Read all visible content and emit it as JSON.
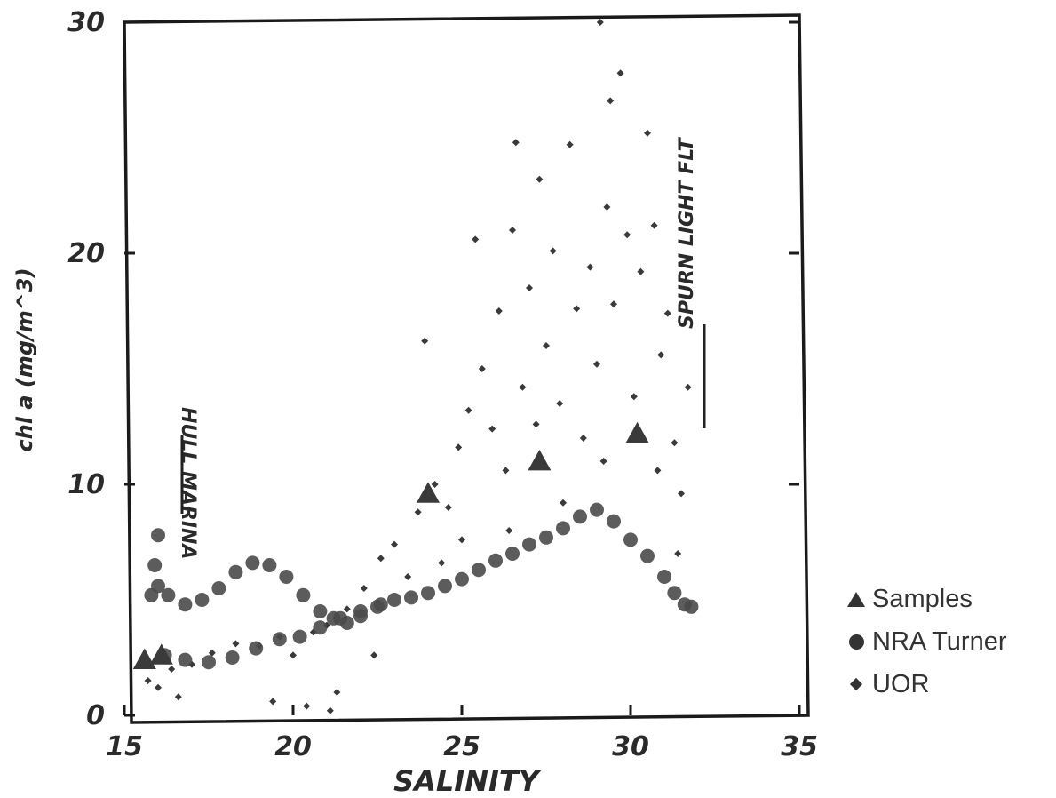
{
  "chart_data": {
    "type": "scatter",
    "title": "",
    "xlabel": "SALINITY",
    "ylabel": "chl a (mg/m^3)",
    "xlim": [
      15,
      35
    ],
    "ylim": [
      0,
      30
    ],
    "xticks": [
      "15",
      "20",
      "25",
      "30",
      "35"
    ],
    "yticks": [
      "0",
      "10",
      "20",
      "30"
    ],
    "grid": false,
    "legend_position": "right",
    "annotations": [
      "HULL MARINA",
      "SPURN LIGHT FLT"
    ],
    "series": [
      {
        "name": "Samples",
        "marker": "triangle",
        "points": [
          [
            15.6,
            2.4
          ],
          [
            16.1,
            2.6
          ],
          [
            24.0,
            9.6
          ],
          [
            27.3,
            11.0
          ],
          [
            30.2,
            12.2
          ]
        ]
      },
      {
        "name": "NRA Turner",
        "marker": "circle",
        "points": [
          [
            15.8,
            5.2
          ],
          [
            15.9,
            6.5
          ],
          [
            16.0,
            7.8
          ],
          [
            16.0,
            5.6
          ],
          [
            16.3,
            5.2
          ],
          [
            16.8,
            4.8
          ],
          [
            17.3,
            5.0
          ],
          [
            17.8,
            5.5
          ],
          [
            18.3,
            6.2
          ],
          [
            18.8,
            6.6
          ],
          [
            19.3,
            6.5
          ],
          [
            19.8,
            6.0
          ],
          [
            20.3,
            5.2
          ],
          [
            20.8,
            4.5
          ],
          [
            21.2,
            4.2
          ],
          [
            21.6,
            4.0
          ],
          [
            22.0,
            4.3
          ],
          [
            22.5,
            4.7
          ],
          [
            23.0,
            5.0
          ],
          [
            23.5,
            5.1
          ],
          [
            24.0,
            5.3
          ],
          [
            24.5,
            5.6
          ],
          [
            25.0,
            5.9
          ],
          [
            25.5,
            6.3
          ],
          [
            26.0,
            6.7
          ],
          [
            26.5,
            7.0
          ],
          [
            27.0,
            7.4
          ],
          [
            27.5,
            7.7
          ],
          [
            28.0,
            8.1
          ],
          [
            28.5,
            8.6
          ],
          [
            29.0,
            8.9
          ],
          [
            29.5,
            8.4
          ],
          [
            30.0,
            7.6
          ],
          [
            30.5,
            6.9
          ],
          [
            31.0,
            6.0
          ],
          [
            31.3,
            5.3
          ],
          [
            31.6,
            4.8
          ],
          [
            31.8,
            4.7
          ],
          [
            16.2,
            2.6
          ],
          [
            16.8,
            2.4
          ],
          [
            17.5,
            2.3
          ],
          [
            18.2,
            2.5
          ],
          [
            18.9,
            2.9
          ],
          [
            19.6,
            3.3
          ],
          [
            20.2,
            3.4
          ],
          [
            20.8,
            3.8
          ],
          [
            21.4,
            4.2
          ],
          [
            22.0,
            4.5
          ],
          [
            22.6,
            4.8
          ]
        ]
      },
      {
        "name": "UOR",
        "marker": "diamond",
        "points": [
          [
            15.7,
            1.5
          ],
          [
            16.0,
            1.2
          ],
          [
            16.4,
            2.0
          ],
          [
            17.0,
            2.2
          ],
          [
            17.6,
            2.7
          ],
          [
            18.3,
            3.1
          ],
          [
            19.0,
            3.0
          ],
          [
            19.6,
            3.4
          ],
          [
            20.0,
            2.6
          ],
          [
            20.6,
            3.6
          ],
          [
            21.0,
            3.9
          ],
          [
            21.3,
            1.0
          ],
          [
            21.6,
            4.6
          ],
          [
            22.1,
            5.5
          ],
          [
            22.6,
            6.8
          ],
          [
            23.0,
            7.4
          ],
          [
            23.4,
            6.0
          ],
          [
            23.7,
            8.8
          ],
          [
            23.9,
            16.2
          ],
          [
            24.2,
            10.0
          ],
          [
            24.6,
            9.0
          ],
          [
            24.9,
            11.6
          ],
          [
            25.2,
            13.2
          ],
          [
            25.4,
            20.6
          ],
          [
            25.6,
            15.0
          ],
          [
            25.9,
            12.4
          ],
          [
            26.1,
            17.5
          ],
          [
            26.3,
            10.6
          ],
          [
            26.5,
            21.0
          ],
          [
            26.6,
            24.8
          ],
          [
            26.8,
            14.2
          ],
          [
            27.0,
            18.5
          ],
          [
            27.2,
            12.6
          ],
          [
            27.3,
            23.2
          ],
          [
            27.5,
            16.0
          ],
          [
            27.7,
            20.1
          ],
          [
            27.9,
            13.5
          ],
          [
            28.2,
            24.7
          ],
          [
            28.4,
            17.6
          ],
          [
            28.6,
            12.0
          ],
          [
            28.8,
            19.4
          ],
          [
            29.0,
            15.2
          ],
          [
            29.1,
            30.0
          ],
          [
            29.3,
            22.0
          ],
          [
            29.4,
            26.6
          ],
          [
            29.5,
            17.8
          ],
          [
            29.7,
            27.8
          ],
          [
            29.9,
            20.8
          ],
          [
            30.1,
            13.8
          ],
          [
            30.3,
            19.2
          ],
          [
            30.5,
            25.2
          ],
          [
            30.7,
            21.2
          ],
          [
            30.9,
            15.6
          ],
          [
            31.1,
            17.4
          ],
          [
            31.3,
            11.8
          ],
          [
            31.5,
            9.6
          ],
          [
            31.7,
            14.2
          ],
          [
            31.4,
            7.0
          ],
          [
            30.8,
            10.6
          ],
          [
            29.2,
            11.0
          ],
          [
            28.0,
            9.2
          ],
          [
            26.4,
            8.0
          ],
          [
            25.0,
            7.6
          ],
          [
            24.4,
            6.6
          ],
          [
            22.4,
            2.6
          ],
          [
            19.4,
            0.6
          ],
          [
            20.4,
            0.4
          ],
          [
            21.1,
            0.2
          ],
          [
            16.6,
            0.8
          ]
        ]
      }
    ]
  }
}
